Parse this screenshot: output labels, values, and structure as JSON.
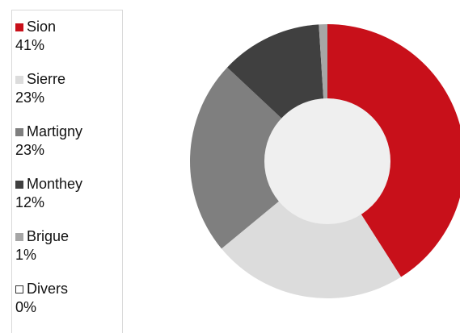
{
  "chart_data": {
    "type": "pie",
    "variant": "donut",
    "title": "",
    "categories": [
      "Sion",
      "Sierre",
      "Martigny",
      "Monthey",
      "Brigue",
      "Divers"
    ],
    "values": [
      41,
      23,
      23,
      12,
      1,
      0
    ],
    "labels": [
      "41%",
      "23%",
      "23%",
      "12%",
      "1%",
      "0%"
    ],
    "colors": [
      "#c8101a",
      "#dcdcdc",
      "#7f7f7f",
      "#404040",
      "#a6a6a6",
      "#ffffff"
    ],
    "hole_color": "#efefef",
    "legend_position": "left"
  }
}
